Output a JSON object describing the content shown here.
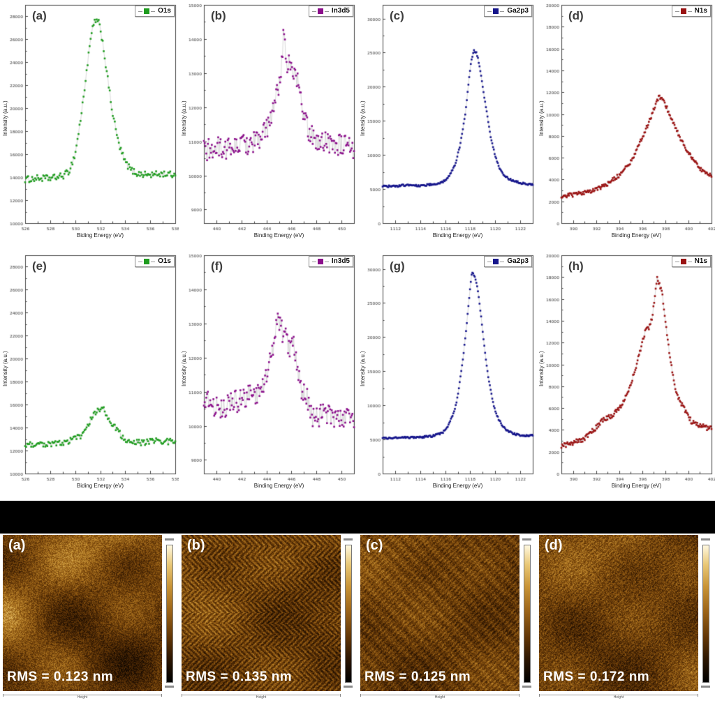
{
  "figure": {
    "background": "#ffffff",
    "separator_color": "#000000"
  },
  "chart_data": [
    {
      "type": "scatter",
      "panel_label": "(a)",
      "legend": "O1s",
      "color": "#1f9c1f",
      "xlabel": "Biding Energy (eV)",
      "ylabel": "Intensity (a.u.)",
      "xlim": [
        526,
        538
      ],
      "ylim": [
        10000,
        29000
      ],
      "xticks": [
        526,
        528,
        530,
        532,
        534,
        536,
        538
      ],
      "yticks": [
        10000,
        12000,
        14000,
        16000,
        18000,
        20000,
        22000,
        24000,
        26000,
        28000
      ],
      "n_points": 150,
      "noise": 280,
      "keypoints": [
        [
          526,
          13800
        ],
        [
          527,
          13900
        ],
        [
          528,
          13900
        ],
        [
          529,
          14100
        ],
        [
          529.5,
          14500
        ],
        [
          530,
          16000
        ],
        [
          530.5,
          19500
        ],
        [
          531,
          24000
        ],
        [
          531.3,
          26500
        ],
        [
          531.6,
          27700
        ],
        [
          531.9,
          27400
        ],
        [
          532.2,
          25800
        ],
        [
          532.5,
          23300
        ],
        [
          533,
          19500
        ],
        [
          533.5,
          16800
        ],
        [
          534,
          15300
        ],
        [
          534.5,
          14600
        ],
        [
          535,
          14300
        ],
        [
          536,
          14200
        ],
        [
          537,
          14300
        ],
        [
          538,
          14200
        ]
      ]
    },
    {
      "type": "scatter",
      "panel_label": "(b)",
      "legend": "In3d5",
      "color": "#8b0f8b",
      "xlabel": "Binding Energy (eV)",
      "ylabel": "Intensity (a.u.)",
      "xlim": [
        439,
        451
      ],
      "ylim": [
        8600,
        15000
      ],
      "xticks": [
        440,
        442,
        444,
        446,
        448,
        450
      ],
      "yticks": [
        9000,
        10000,
        11000,
        12000,
        13000,
        14000,
        15000
      ],
      "n_points": 190,
      "noise": 330,
      "keypoints": [
        [
          439,
          10700
        ],
        [
          440,
          10800
        ],
        [
          441,
          10800
        ],
        [
          442,
          10900
        ],
        [
          443,
          11000
        ],
        [
          443.8,
          11200
        ],
        [
          444.3,
          11600
        ],
        [
          444.8,
          12300
        ],
        [
          445.1,
          12900
        ],
        [
          445.4,
          14200
        ],
        [
          445.6,
          13300
        ],
        [
          445.9,
          13300
        ],
        [
          446.1,
          13000
        ],
        [
          446.4,
          12900
        ],
        [
          446.7,
          12300
        ],
        [
          447,
          11700
        ],
        [
          447.4,
          11300
        ],
        [
          448,
          11000
        ],
        [
          449,
          11000
        ],
        [
          450,
          10900
        ],
        [
          451,
          10700
        ]
      ]
    },
    {
      "type": "scatter",
      "panel_label": "(c)",
      "legend": "Ga2p3",
      "color": "#16168c",
      "xlabel": "Binding Energy (eV)",
      "ylabel": "Intensity (a.u.)",
      "xlim": [
        1111,
        1123
      ],
      "ylim": [
        0,
        32000
      ],
      "xticks": [
        1112,
        1114,
        1116,
        1118,
        1120,
        1122
      ],
      "yticks": [
        0,
        5000,
        10000,
        15000,
        20000,
        25000,
        30000
      ],
      "n_points": 190,
      "noise": 140,
      "keypoints": [
        [
          1111,
          5400
        ],
        [
          1112,
          5400
        ],
        [
          1113,
          5600
        ],
        [
          1114,
          5500
        ],
        [
          1115,
          5700
        ],
        [
          1115.8,
          6000
        ],
        [
          1116.3,
          6800
        ],
        [
          1116.8,
          8500
        ],
        [
          1117.2,
          11500
        ],
        [
          1117.6,
          16000
        ],
        [
          1117.9,
          21000
        ],
        [
          1118.1,
          24000
        ],
        [
          1118.3,
          25300
        ],
        [
          1118.5,
          25000
        ],
        [
          1118.7,
          23500
        ],
        [
          1119,
          20000
        ],
        [
          1119.3,
          16500
        ],
        [
          1119.6,
          13000
        ],
        [
          1120,
          9800
        ],
        [
          1120.4,
          7800
        ],
        [
          1120.8,
          6800
        ],
        [
          1121.3,
          6300
        ],
        [
          1122,
          5900
        ],
        [
          1123,
          5600
        ]
      ]
    },
    {
      "type": "scatter",
      "panel_label": "(d)",
      "legend": "N1s",
      "color": "#9a1313",
      "xlabel": "Binding Energy (eV)",
      "ylabel": "Intensity (a.u.)",
      "xlim": [
        389,
        402
      ],
      "ylim": [
        0,
        20000
      ],
      "xticks": [
        390,
        392,
        394,
        396,
        398,
        400,
        402
      ],
      "yticks": [
        0,
        2000,
        4000,
        6000,
        8000,
        10000,
        12000,
        14000,
        16000,
        18000,
        20000
      ],
      "n_points": 200,
      "noise": 180,
      "keypoints": [
        [
          389,
          2500
        ],
        [
          390,
          2600
        ],
        [
          391,
          2800
        ],
        [
          392,
          3100
        ],
        [
          393,
          3600
        ],
        [
          394,
          4400
        ],
        [
          395,
          5600
        ],
        [
          396,
          7800
        ],
        [
          396.8,
          9800
        ],
        [
          397.3,
          11300
        ],
        [
          397.5,
          11600
        ],
        [
          397.8,
          11300
        ],
        [
          398.2,
          10400
        ],
        [
          398.7,
          9200
        ],
        [
          399.2,
          8000
        ],
        [
          399.8,
          6800
        ],
        [
          400.4,
          5800
        ],
        [
          401,
          5000
        ],
        [
          401.5,
          4600
        ],
        [
          402,
          4300
        ]
      ]
    },
    {
      "type": "scatter",
      "panel_label": "(e)",
      "legend": "O1s",
      "color": "#1f9c1f",
      "xlabel": "Biding Energy (eV)",
      "ylabel": "Intensity (a.u.)",
      "xlim": [
        526,
        538
      ],
      "ylim": [
        10000,
        29000
      ],
      "xticks": [
        526,
        528,
        530,
        532,
        534,
        536,
        538
      ],
      "yticks": [
        10000,
        12000,
        14000,
        16000,
        18000,
        20000,
        22000,
        24000,
        26000,
        28000
      ],
      "n_points": 150,
      "noise": 280,
      "keypoints": [
        [
          526,
          12600
        ],
        [
          528,
          12600
        ],
        [
          529.5,
          12800
        ],
        [
          530.5,
          13300
        ],
        [
          531.5,
          15200
        ],
        [
          532.1,
          15800
        ],
        [
          532.5,
          15200
        ],
        [
          533,
          14200
        ],
        [
          533.7,
          13300
        ],
        [
          534.3,
          12800
        ],
        [
          535,
          12700
        ],
        [
          536,
          12800
        ],
        [
          537,
          12800
        ],
        [
          538,
          12800
        ]
      ]
    },
    {
      "type": "scatter",
      "panel_label": "(f)",
      "legend": "In3d5",
      "color": "#8b0f8b",
      "xlabel": "Binding Energy (eV)",
      "ylabel": "Intensity (a.u.)",
      "xlim": [
        439,
        451
      ],
      "ylim": [
        8600,
        15000
      ],
      "xticks": [
        440,
        442,
        444,
        446,
        448,
        450
      ],
      "yticks": [
        9000,
        10000,
        11000,
        12000,
        13000,
        14000,
        15000
      ],
      "n_points": 190,
      "noise": 330,
      "keypoints": [
        [
          439,
          10900
        ],
        [
          440,
          10500
        ],
        [
          441,
          10600
        ],
        [
          442,
          10800
        ],
        [
          443,
          10900
        ],
        [
          443.6,
          11100
        ],
        [
          444.1,
          11600
        ],
        [
          444.5,
          12100
        ],
        [
          444.8,
          13200
        ],
        [
          445,
          13000
        ],
        [
          445.3,
          12700
        ],
        [
          445.6,
          12600
        ],
        [
          445.9,
          12200
        ],
        [
          446.2,
          12300
        ],
        [
          446.5,
          11700
        ],
        [
          446.8,
          11000
        ],
        [
          447.2,
          10900
        ],
        [
          447.6,
          10300
        ],
        [
          448.5,
          10300
        ],
        [
          449.5,
          10300
        ],
        [
          450.5,
          10200
        ],
        [
          451,
          10100
        ]
      ]
    },
    {
      "type": "scatter",
      "panel_label": "(g)",
      "legend": "Ga2p3",
      "color": "#16168c",
      "xlabel": "Binding Energy (eV)",
      "ylabel": "Intensity (a.u.)",
      "xlim": [
        1111,
        1123
      ],
      "ylim": [
        0,
        32000
      ],
      "xticks": [
        1112,
        1114,
        1116,
        1118,
        1120,
        1122
      ],
      "yticks": [
        0,
        5000,
        10000,
        15000,
        20000,
        25000,
        30000
      ],
      "n_points": 190,
      "noise": 140,
      "keypoints": [
        [
          1111,
          5200
        ],
        [
          1112,
          5200
        ],
        [
          1113,
          5300
        ],
        [
          1114,
          5300
        ],
        [
          1115,
          5500
        ],
        [
          1115.8,
          6000
        ],
        [
          1116.3,
          7200
        ],
        [
          1116.8,
          9500
        ],
        [
          1117.1,
          12500
        ],
        [
          1117.4,
          16500
        ],
        [
          1117.7,
          21500
        ],
        [
          1117.9,
          25500
        ],
        [
          1118.1,
          29000
        ],
        [
          1118.2,
          29500
        ],
        [
          1118.4,
          28800
        ],
        [
          1118.6,
          27000
        ],
        [
          1118.9,
          22500
        ],
        [
          1119.2,
          17500
        ],
        [
          1119.5,
          13500
        ],
        [
          1119.9,
          9800
        ],
        [
          1120.3,
          7800
        ],
        [
          1120.8,
          6500
        ],
        [
          1121.5,
          5800
        ],
        [
          1122.3,
          5500
        ],
        [
          1123,
          5600
        ]
      ]
    },
    {
      "type": "scatter",
      "panel_label": "(h)",
      "legend": "N1s",
      "color": "#9a1313",
      "xlabel": "Binding Energy (eV)",
      "ylabel": "Intensity (a.u.)",
      "xlim": [
        389,
        402
      ],
      "ylim": [
        0,
        20000
      ],
      "xticks": [
        390,
        392,
        394,
        396,
        398,
        400,
        402
      ],
      "yticks": [
        0,
        2000,
        4000,
        6000,
        8000,
        10000,
        12000,
        14000,
        16000,
        18000,
        20000
      ],
      "n_points": 200,
      "noise": 220,
      "keypoints": [
        [
          389,
          2500
        ],
        [
          390,
          2800
        ],
        [
          391,
          3200
        ],
        [
          392,
          4200
        ],
        [
          392.7,
          5000
        ],
        [
          393.5,
          5400
        ],
        [
          394.2,
          6300
        ],
        [
          394.8,
          7500
        ],
        [
          395.4,
          9500
        ],
        [
          395.9,
          11500
        ],
        [
          396.3,
          13200
        ],
        [
          396.6,
          13300
        ],
        [
          396.9,
          14500
        ],
        [
          397.1,
          16300
        ],
        [
          397.3,
          17900
        ],
        [
          397.5,
          17300
        ],
        [
          397.7,
          16800
        ],
        [
          398,
          14200
        ],
        [
          398.2,
          12200
        ],
        [
          398.5,
          10000
        ],
        [
          398.8,
          8000
        ],
        [
          399.2,
          6800
        ],
        [
          399.7,
          5800
        ],
        [
          400.3,
          4700
        ],
        [
          401,
          4400
        ],
        [
          401.6,
          4200
        ],
        [
          402,
          4200
        ]
      ]
    }
  ],
  "afm": {
    "scale_label": "Height",
    "panels": [
      {
        "panel_label": "(a)",
        "rms_label": "RMS = 0.123 nm",
        "pattern": "blotch",
        "seed": 11,
        "base": 0.48,
        "bl": 0.3,
        "gr": 0.17,
        "st": 0.0
      },
      {
        "panel_label": "(b)",
        "rms_label": "RMS = 0.135 nm",
        "pattern": "herringbone",
        "seed": 22,
        "base": 0.45,
        "bl": 0.14,
        "gr": 0.15,
        "st": 0.13
      },
      {
        "panel_label": "(c)",
        "rms_label": "RMS = 0.125 nm",
        "pattern": "weave",
        "seed": 33,
        "base": 0.45,
        "bl": 0.12,
        "gr": 0.15,
        "st": 0.12
      },
      {
        "panel_label": "(d)",
        "rms_label": "RMS = 0.172 nm",
        "pattern": "blotch-grain",
        "seed": 44,
        "base": 0.47,
        "bl": 0.18,
        "gr": 0.18,
        "st": 0.08
      }
    ]
  }
}
